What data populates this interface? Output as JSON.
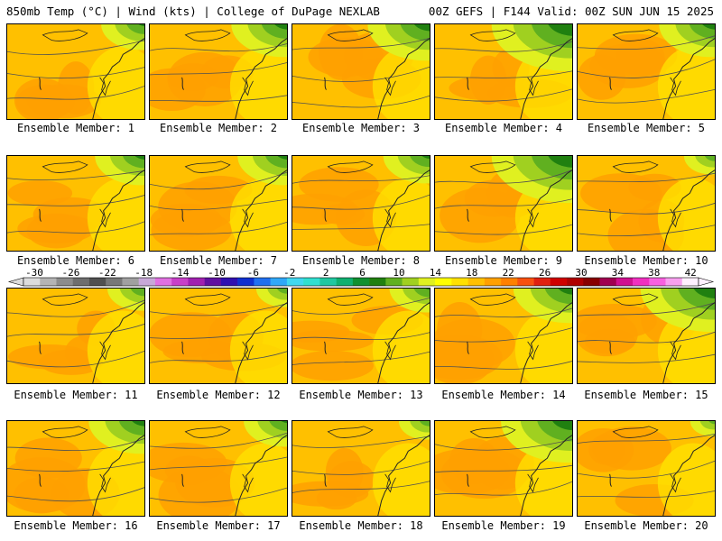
{
  "header": {
    "left": "850mb Temp (°C) | Wind (kts) | College of DuPage NEXLAB",
    "right": "00Z GEFS | F144 Valid: 00Z SUN JUN 15 2025"
  },
  "members": [
    {
      "label": "Ensemble Member: 1",
      "green": 0.35
    },
    {
      "label": "Ensemble Member: 2",
      "green": 0.55
    },
    {
      "label": "Ensemble Member: 3",
      "green": 0.65
    },
    {
      "label": "Ensemble Member: 4",
      "green": 0.95
    },
    {
      "label": "Ensemble Member: 5",
      "green": 0.55
    },
    {
      "label": "Ensemble Member: 6",
      "green": 0.45
    },
    {
      "label": "Ensemble Member: 7",
      "green": 0.45
    },
    {
      "label": "Ensemble Member: 8",
      "green": 0.4
    },
    {
      "label": "Ensemble Member: 9",
      "green": 0.95
    },
    {
      "label": "Ensemble Member: 10",
      "green": 0.15
    },
    {
      "label": "Ensemble Member: 11",
      "green": 0.25
    },
    {
      "label": "Ensemble Member: 12",
      "green": 0.15
    },
    {
      "label": "Ensemble Member: 13",
      "green": 0.3
    },
    {
      "label": "Ensemble Member: 14",
      "green": 0.6
    },
    {
      "label": "Ensemble Member: 15",
      "green": 0.85
    },
    {
      "label": "Ensemble Member: 16",
      "green": 0.55
    },
    {
      "label": "Ensemble Member: 17",
      "green": 0.35
    },
    {
      "label": "Ensemble Member: 18",
      "green": 0.15
    },
    {
      "label": "Ensemble Member: 19",
      "green": 0.8
    },
    {
      "label": "Ensemble Member: 20",
      "green": 0.05
    }
  ],
  "colorbar": {
    "labels": [
      "-30",
      "-26",
      "-22",
      "-18",
      "-14",
      "-10",
      "-6",
      "-2",
      "2",
      "6",
      "10",
      "14",
      "18",
      "22",
      "26",
      "30",
      "34",
      "38",
      "42"
    ],
    "colors": [
      "#dcdcdc",
      "#b4b4b4",
      "#8c8c8c",
      "#6e6e6e",
      "#505050",
      "#787878",
      "#a0a0a0",
      "#c8a8d8",
      "#e070e0",
      "#c840c8",
      "#a020b0",
      "#6010a0",
      "#3010b0",
      "#1030d0",
      "#2070f0",
      "#30a8f8",
      "#40d8f0",
      "#30e0d0",
      "#20c8a0",
      "#10b070",
      "#109030",
      "#208010",
      "#60b020",
      "#a0d020",
      "#e0f020",
      "#ffff00",
      "#ffe000",
      "#ffc000",
      "#ffa000",
      "#ff8000",
      "#f85010",
      "#e02010",
      "#d00000",
      "#b00000",
      "#880000",
      "#a00050",
      "#d01090",
      "#f030c0",
      "#f860e0",
      "#f8a0f0",
      "#fff0ff"
    ]
  }
}
